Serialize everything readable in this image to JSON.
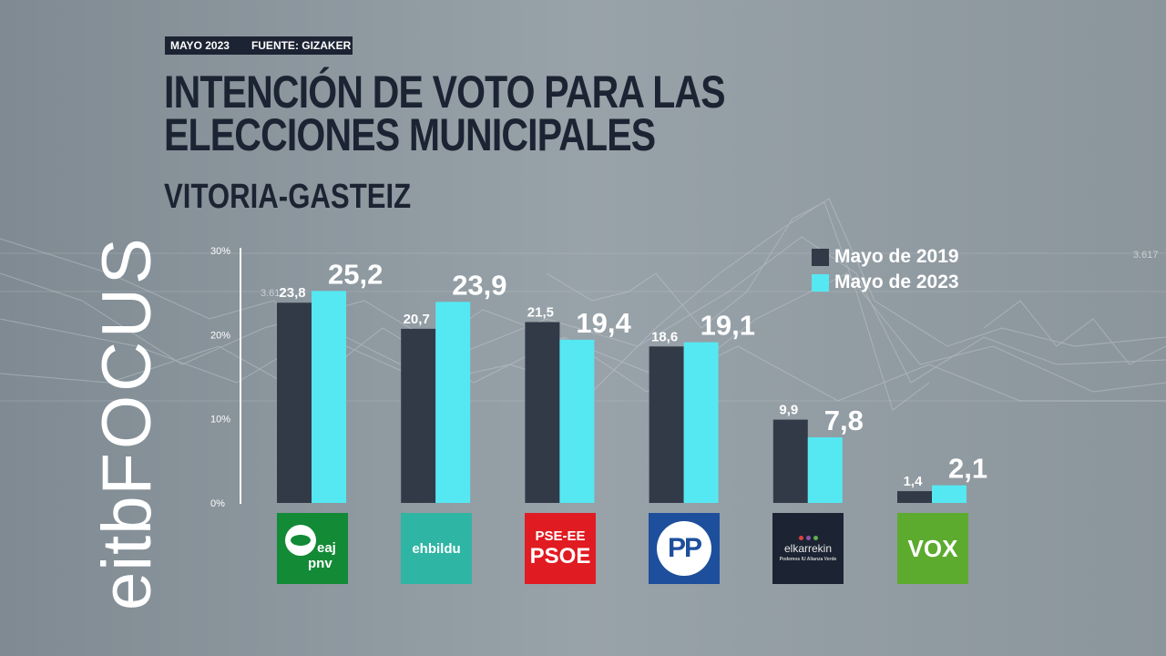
{
  "header": {
    "date_tag": "MAYO 2023",
    "source_tag": "FUENTE: GIZAKER",
    "title": "INTENCIÓN DE VOTO PARA LAS ELECCIONES MUNICIPALES",
    "subtitle": "VITORIA-GASTEIZ"
  },
  "watermark": {
    "part1": "eitb",
    "part2": "FOCUS"
  },
  "background": {
    "ticker_text_1": "3.617",
    "ticker_text_2": "3.617"
  },
  "colors": {
    "series_2019": "#323a48",
    "series_2023": "#55e8f2",
    "axis": "#ffffff",
    "background": "#8e989f"
  },
  "logos": {
    "pnv": {
      "line1": "eaj",
      "line2": "pnv"
    },
    "bildu": "ehbildu",
    "psoe": {
      "line1": "PSE-EE",
      "line2": "PSOE"
    },
    "pp": "PP",
    "elkarrekin": {
      "line1": "elkarrekin",
      "line2": "Podemos IU Alianza Verde"
    },
    "vox": "VOX"
  },
  "chart_data": {
    "type": "bar",
    "categories": [
      "EAJ-PNV",
      "EH Bildu",
      "PSE-EE (PSOE)",
      "PP",
      "Elkarrekin Podemos",
      "VOX"
    ],
    "series": [
      {
        "name": "Mayo de 2019",
        "values": [
          23.8,
          20.7,
          21.5,
          18.6,
          9.9,
          1.4
        ],
        "labels": [
          "23,8",
          "20,7",
          "21,5",
          "18,6",
          "9,9",
          "1,4"
        ]
      },
      {
        "name": "Mayo de 2023",
        "values": [
          25.2,
          23.9,
          19.4,
          19.1,
          7.8,
          2.1
        ],
        "labels": [
          "25,2",
          "23,9",
          "19,4",
          "19,1",
          "7,8",
          "2,1"
        ]
      }
    ],
    "ylim": [
      0,
      30
    ],
    "yticks": [
      {
        "value": 0,
        "label": "0%"
      },
      {
        "value": 10,
        "label": "10%"
      },
      {
        "value": 20,
        "label": "20%"
      },
      {
        "value": 30,
        "label": "30%"
      }
    ],
    "legend_position": "top-right"
  }
}
